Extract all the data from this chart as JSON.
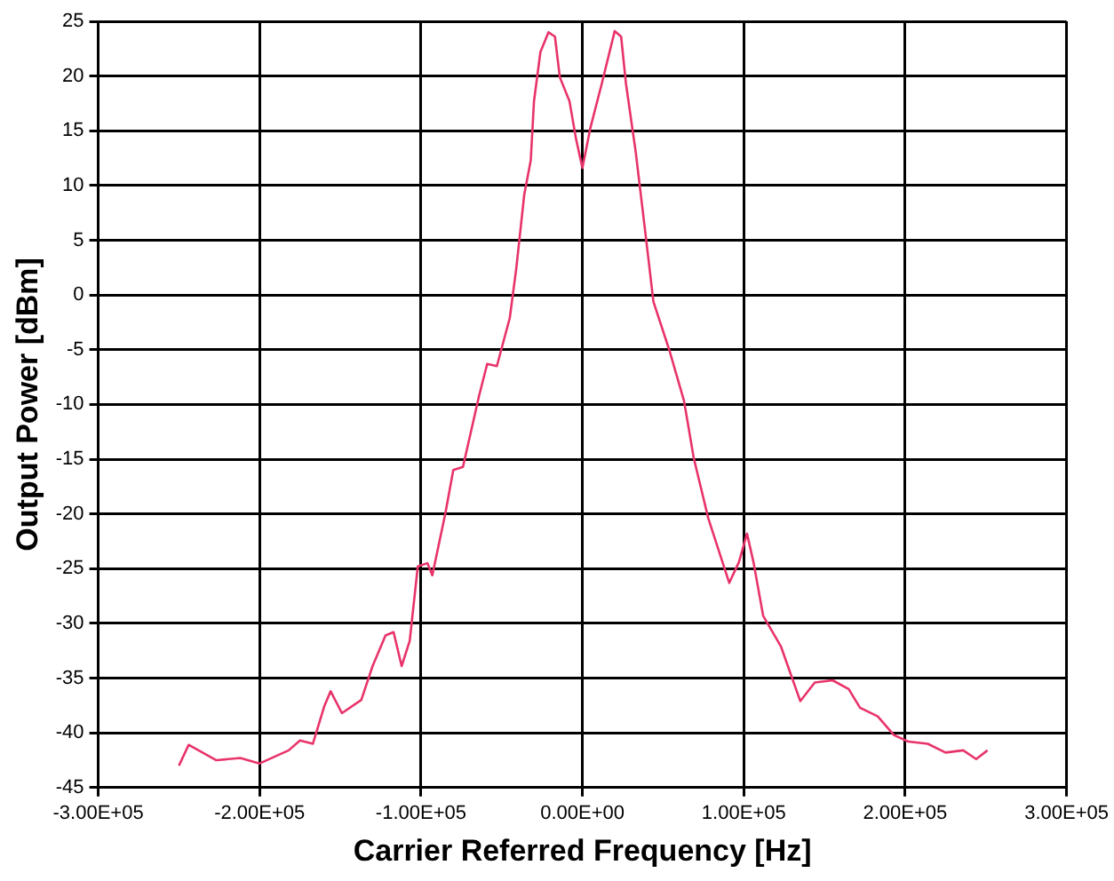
{
  "chart_data": {
    "type": "line",
    "xlabel": "Carrier Referred Frequency [Hz]",
    "ylabel": "Output Power [dBm]",
    "x": [
      -250000,
      -244000,
      -227000,
      -212000,
      -200000,
      -182000,
      -175000,
      -167000,
      -160000,
      -156000,
      -149000,
      -137000,
      -130000,
      -122000,
      -117000,
      -112000,
      -107000,
      -102000,
      -96000,
      -93000,
      -85000,
      -80000,
      -74000,
      -64000,
      -59000,
      -53000,
      -45000,
      -41000,
      -36000,
      -32000,
      -30000,
      -26000,
      -21000,
      -17000,
      -14000,
      -8000,
      -4000,
      0,
      5000,
      12000,
      20000,
      24000,
      27000,
      33000,
      39000,
      44000,
      54000,
      63000,
      69000,
      78000,
      91000,
      97000,
      102000,
      106000,
      112000,
      123000,
      135000,
      144000,
      155000,
      165000,
      172000,
      183000,
      193000,
      202000,
      214000,
      225000,
      236000,
      244000,
      251000
    ],
    "series": [
      {
        "color": "#e8336a",
        "values": [
          -43,
          -41.1,
          -42.5,
          -42.3,
          -42.8,
          -41.6,
          -40.7,
          -41,
          -37.6,
          -36.2,
          -38.2,
          -37,
          -33.9,
          -31.1,
          -30.8,
          -33.9,
          -31.6,
          -24.8,
          -24.5,
          -25.6,
          -20,
          -16,
          -15.7,
          -9.2,
          -6.3,
          -6.5,
          -2.1,
          2.4,
          9.2,
          12.3,
          17.7,
          22.2,
          24,
          23.6,
          19.9,
          17.7,
          14.3,
          11.6,
          15.3,
          19.3,
          24.1,
          23.6,
          19.3,
          13.1,
          5.7,
          -0.6,
          -5.1,
          -9.7,
          -14.9,
          -20.4,
          -26.3,
          -24.4,
          -21.8,
          -24.4,
          -29.3,
          -32.1,
          -37.1,
          -35.4,
          -35.2,
          -36,
          -37.7,
          -38.5,
          -40.2,
          -40.8,
          -41,
          -41.8,
          -41.6,
          -42.4,
          -41.6
        ]
      }
    ],
    "xlim": [
      -300000,
      300000
    ],
    "xticks": [
      {
        "value": -300000,
        "label": "-3.00E+05"
      },
      {
        "value": -200000,
        "label": "-2.00E+05"
      },
      {
        "value": -100000,
        "label": "-1.00E+05"
      },
      {
        "value": 0,
        "label": "0.00E+00"
      },
      {
        "value": 100000,
        "label": "1.00E+05"
      },
      {
        "value": 200000,
        "label": "2.00E+05"
      },
      {
        "value": 300000,
        "label": "3.00E+05"
      }
    ],
    "ylim": [
      -45,
      25
    ],
    "yticks": [
      -45,
      -40,
      -35,
      -30,
      -25,
      -20,
      -15,
      -10,
      -5,
      0,
      5,
      10,
      15,
      20,
      25
    ],
    "grid": true,
    "marker": "none",
    "line_style": "solid"
  }
}
